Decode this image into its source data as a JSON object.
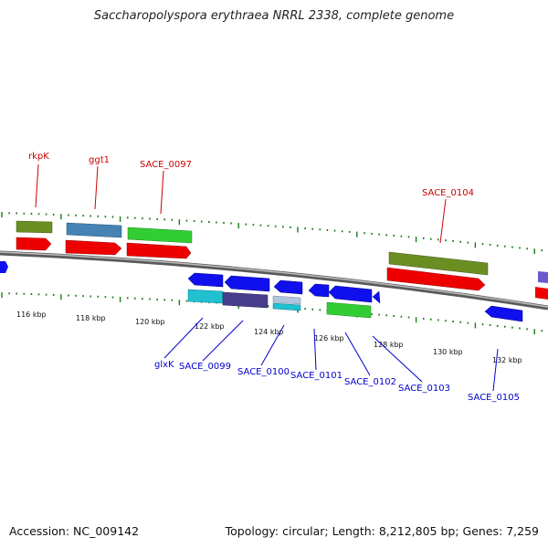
{
  "title": "Saccharopolyspora erythraea NRRL 2338, complete genome",
  "footer": {
    "accession": "Accession: NC_009142",
    "summary": "Topology: circular; Length: 8,212,805 bp; Genes: 7,259"
  },
  "colors": {
    "forward_label": "#cc0000",
    "reverse_label": "#0000cc",
    "tick": "#1a7a1a",
    "backbone": "#888888"
  },
  "axis_ticks": [
    {
      "label": "116 kbp"
    },
    {
      "label": "118 kbp"
    },
    {
      "label": "120 kbp"
    },
    {
      "label": "122 kbp"
    },
    {
      "label": "124 kbp"
    },
    {
      "label": "126 kbp"
    },
    {
      "label": "128 kbp"
    },
    {
      "label": "130 kbp"
    },
    {
      "label": "132 kbp"
    }
  ],
  "forward_genes": [
    {
      "label": "rkpK"
    },
    {
      "label": "ggt1"
    },
    {
      "label": "SACE_0097"
    },
    {
      "label": "SACE_0104"
    }
  ],
  "reverse_genes": [
    {
      "label": "glxK"
    },
    {
      "label": "SACE_0099"
    },
    {
      "label": "SACE_0100"
    },
    {
      "label": "SACE_0101"
    },
    {
      "label": "SACE_0102"
    },
    {
      "label": "SACE_0103"
    },
    {
      "label": "SACE_0105"
    }
  ]
}
